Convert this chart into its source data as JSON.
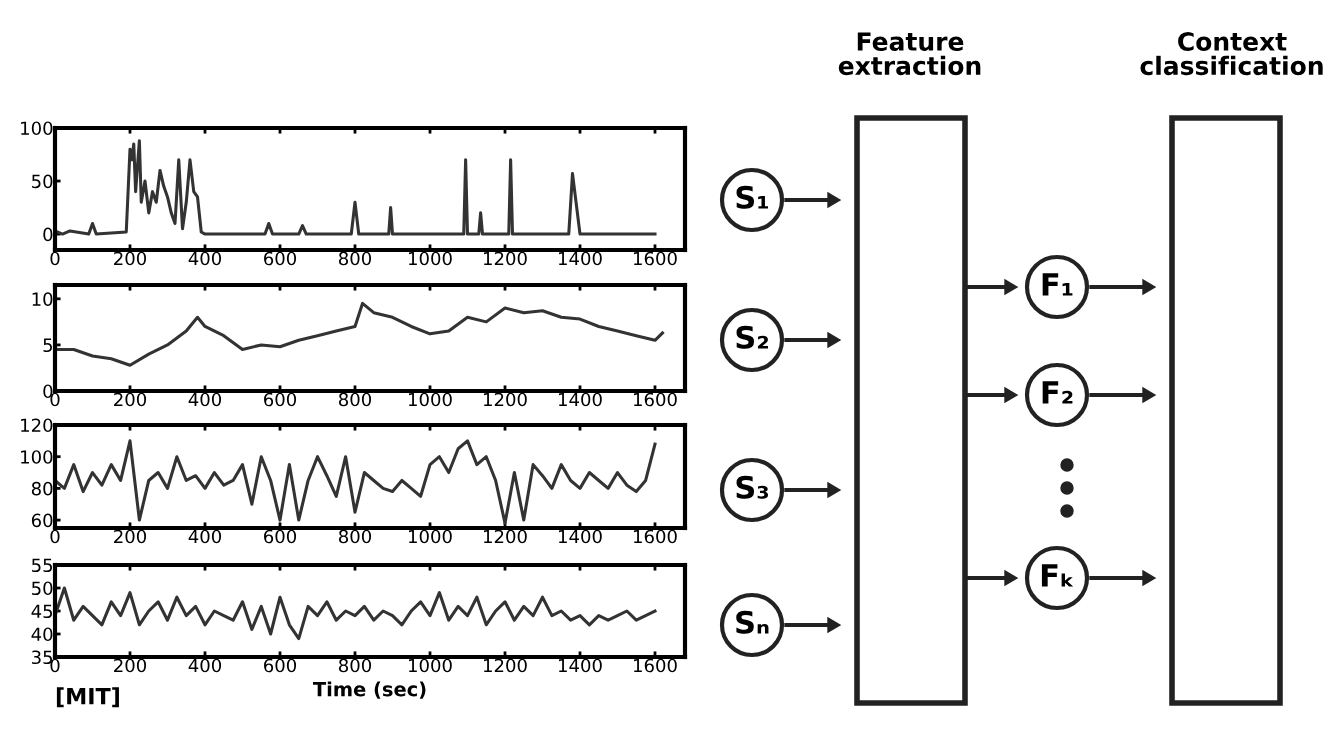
{
  "chart_data": [
    {
      "type": "line",
      "xlim": [
        0,
        1680
      ],
      "ylim": [
        -15,
        100
      ],
      "xticks": [
        0,
        200,
        400,
        600,
        800,
        1000,
        1200,
        1400,
        1600
      ],
      "yticks": [
        0,
        50,
        100
      ],
      "grid": false,
      "marker": "none",
      "line_style": "solid",
      "series": [
        {
          "color": "#333333",
          "x": [
            0,
            20,
            40,
            90,
            100,
            110,
            190,
            200,
            205,
            210,
            215,
            225,
            230,
            240,
            250,
            260,
            270,
            280,
            290,
            300,
            310,
            320,
            330,
            340,
            350,
            360,
            370,
            380,
            390,
            400,
            560,
            570,
            580,
            650,
            660,
            670,
            790,
            800,
            810,
            890,
            895,
            900,
            1090,
            1095,
            1100,
            1130,
            1135,
            1140,
            1210,
            1215,
            1220,
            1370,
            1380,
            1400,
            1600
          ],
          "values": [
            3,
            0,
            3,
            0,
            10,
            0,
            2,
            80,
            70,
            85,
            40,
            88,
            30,
            50,
            20,
            40,
            30,
            60,
            45,
            35,
            20,
            10,
            70,
            5,
            30,
            70,
            40,
            35,
            2,
            0,
            0,
            10,
            0,
            0,
            8,
            0,
            0,
            30,
            0,
            0,
            25,
            0,
            0,
            70,
            0,
            0,
            20,
            0,
            0,
            70,
            0,
            0,
            57,
            0,
            0
          ]
        }
      ]
    },
    {
      "type": "line",
      "xlim": [
        0,
        1680
      ],
      "ylim": [
        0,
        11.5
      ],
      "xticks": [
        0,
        200,
        400,
        600,
        800,
        1000,
        1200,
        1400,
        1600
      ],
      "yticks": [
        0,
        5,
        10
      ],
      "grid": false,
      "marker": "none",
      "line_style": "solid",
      "series": [
        {
          "color": "#333333",
          "x": [
            0,
            50,
            100,
            150,
            200,
            250,
            300,
            350,
            380,
            400,
            450,
            500,
            550,
            600,
            650,
            700,
            750,
            800,
            820,
            850,
            900,
            950,
            1000,
            1050,
            1100,
            1150,
            1200,
            1250,
            1300,
            1350,
            1400,
            1450,
            1500,
            1550,
            1600,
            1620
          ],
          "values": [
            4.5,
            4.5,
            3.8,
            3.5,
            2.8,
            4,
            5,
            6.5,
            8,
            7,
            6,
            4.5,
            5,
            4.8,
            5.5,
            6,
            6.5,
            7,
            9.5,
            8.5,
            8,
            7,
            6.2,
            6.5,
            8,
            7.5,
            9,
            8.5,
            8.7,
            8,
            7.8,
            7,
            6.5,
            6,
            5.5,
            6.3
          ]
        }
      ]
    },
    {
      "type": "line",
      "xlim": [
        0,
        1680
      ],
      "ylim": [
        55,
        120
      ],
      "xticks": [
        0,
        200,
        400,
        600,
        800,
        1000,
        1200,
        1400,
        1600
      ],
      "yticks": [
        60,
        80,
        100,
        120
      ],
      "grid": false,
      "marker": "none",
      "line_style": "solid",
      "series": [
        {
          "color": "#333333",
          "x": [
            0,
            25,
            50,
            75,
            100,
            125,
            150,
            175,
            200,
            225,
            250,
            275,
            300,
            325,
            350,
            375,
            400,
            425,
            450,
            475,
            500,
            525,
            550,
            575,
            600,
            625,
            650,
            675,
            700,
            725,
            750,
            775,
            800,
            825,
            850,
            875,
            900,
            925,
            950,
            975,
            1000,
            1025,
            1050,
            1075,
            1100,
            1125,
            1150,
            1175,
            1200,
            1225,
            1250,
            1275,
            1300,
            1325,
            1350,
            1375,
            1400,
            1425,
            1450,
            1475,
            1500,
            1525,
            1550,
            1575,
            1600
          ],
          "values": [
            85,
            80,
            95,
            78,
            90,
            82,
            95,
            85,
            110,
            60,
            85,
            90,
            80,
            100,
            85,
            88,
            80,
            90,
            82,
            85,
            95,
            70,
            100,
            85,
            60,
            95,
            60,
            85,
            100,
            88,
            75,
            100,
            65,
            90,
            85,
            80,
            78,
            85,
            80,
            75,
            95,
            100,
            90,
            105,
            110,
            95,
            100,
            85,
            58,
            90,
            60,
            95,
            88,
            80,
            95,
            85,
            80,
            90,
            85,
            80,
            90,
            82,
            78,
            85,
            108
          ]
        }
      ]
    },
    {
      "type": "line",
      "xlim": [
        0,
        1680
      ],
      "ylim": [
        35,
        55
      ],
      "xticks": [
        0,
        200,
        400,
        600,
        800,
        1000,
        1200,
        1400,
        1600
      ],
      "yticks": [
        35,
        40,
        45,
        50,
        55
      ],
      "grid": false,
      "marker": "none",
      "line_style": "solid",
      "xlabel": "Time (sec)",
      "annotations": [
        "[MIT]"
      ],
      "series": [
        {
          "color": "#333333",
          "x": [
            0,
            25,
            50,
            75,
            100,
            125,
            150,
            175,
            200,
            225,
            250,
            275,
            300,
            325,
            350,
            375,
            400,
            425,
            450,
            475,
            500,
            525,
            550,
            575,
            600,
            625,
            650,
            675,
            700,
            725,
            750,
            775,
            800,
            825,
            850,
            875,
            900,
            925,
            950,
            975,
            1000,
            1025,
            1050,
            1075,
            1100,
            1125,
            1150,
            1175,
            1200,
            1225,
            1250,
            1275,
            1300,
            1325,
            1350,
            1375,
            1400,
            1425,
            1450,
            1475,
            1500,
            1525,
            1550,
            1575,
            1600
          ],
          "values": [
            44,
            50,
            43,
            46,
            44,
            42,
            47,
            44,
            49,
            42,
            45,
            47,
            43,
            48,
            44,
            46,
            42,
            45,
            44,
            43,
            47,
            41,
            46,
            40,
            48,
            42,
            39,
            46,
            44,
            47,
            43,
            45,
            44,
            46,
            43,
            45,
            44,
            42,
            45,
            47,
            44,
            49,
            43,
            46,
            44,
            48,
            42,
            45,
            47,
            43,
            46,
            44,
            48,
            44,
            45,
            43,
            44,
            42,
            44,
            43,
            44,
            45,
            43,
            44,
            45
          ]
        }
      ]
    },
    {
      "type": "other",
      "annotations": [
        "Feature\nextraction",
        "Context\nclassification",
        "S₁",
        "S₂",
        "S₃",
        "Sₙ",
        "F₁",
        "F₂",
        "Fₖ"
      ]
    }
  ]
}
